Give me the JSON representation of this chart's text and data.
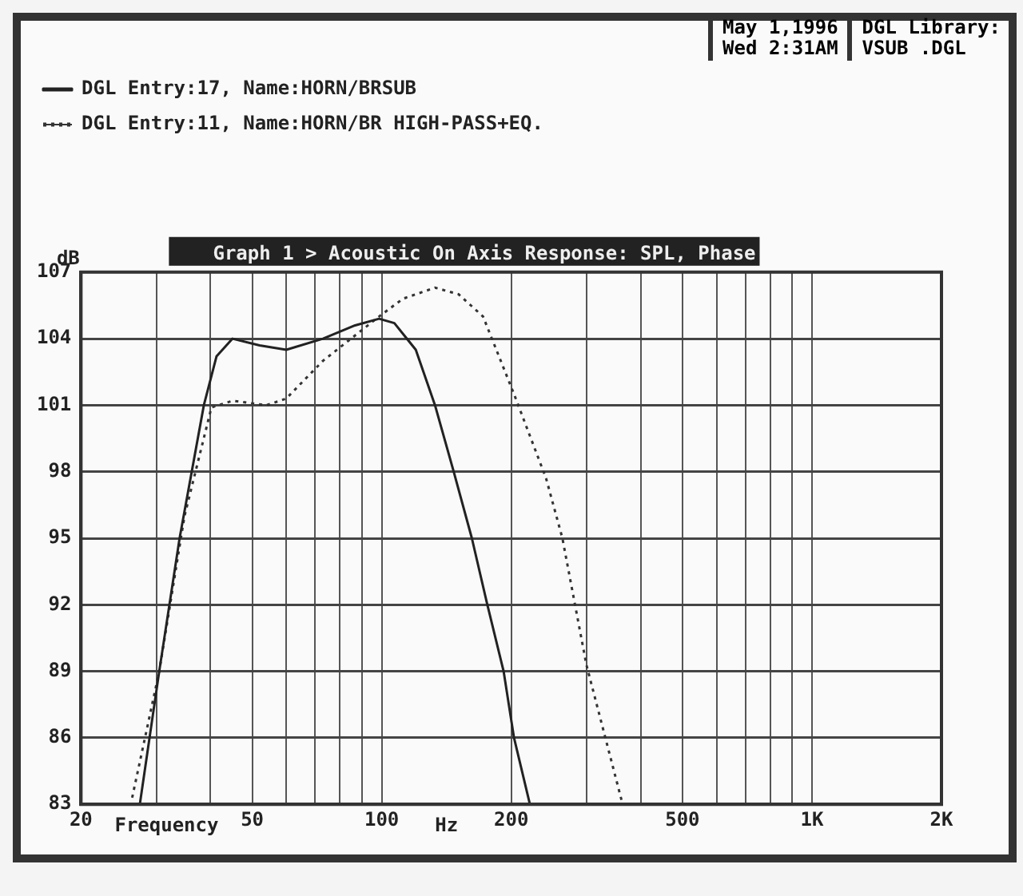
{
  "chart_data": {
    "type": "line",
    "title": "Graph 1 > Acoustic On Axis Response: SPL, Phase",
    "xlabel": "Frequency",
    "ylabel": "dB",
    "annotations": [
      "May  1,1996",
      "Wed  2:31AM",
      "DGL Library:",
      "VSUB    .DGL",
      "Hz"
    ],
    "log": "x",
    "grid": true,
    "legend": "top",
    "marker": "none",
    "xlim": [
      20,
      2000
    ],
    "ylim": [
      83,
      107
    ],
    "xticks": [
      20,
      {
        "value": 30,
        "label": null
      },
      {
        "value": 40,
        "label": null
      },
      50,
      {
        "value": 60,
        "label": null
      },
      {
        "value": 70,
        "label": null
      },
      {
        "value": 80,
        "label": null
      },
      {
        "value": 90,
        "label": null
      },
      100,
      200,
      {
        "value": 300,
        "label": null
      },
      {
        "value": 400,
        "label": null
      },
      500,
      {
        "value": 600,
        "label": null
      },
      {
        "value": 700,
        "label": null
      },
      {
        "value": 800,
        "label": null
      },
      {
        "value": 900,
        "label": null
      },
      {
        "value": 1000,
        "label": "1K"
      },
      {
        "value": 2000,
        "label": "2K"
      }
    ],
    "yticks": [
      83,
      86,
      89,
      92,
      95,
      98,
      101,
      104,
      107
    ],
    "series": [
      {
        "name": "DGL Entry:17, Name:HORN/BRSUB",
        "color": "#222222",
        "line_style": "solid",
        "x": [
          27.4,
          30.4,
          33.9,
          38.6,
          41.3,
          45,
          52,
          60,
          73,
          86.7,
          98.6,
          107,
          120,
          133,
          147,
          162,
          176,
          192,
          203,
          221
        ],
        "values": [
          83,
          89,
          95,
          101,
          103.2,
          104,
          103.7,
          103.5,
          104,
          104.6,
          104.9,
          104.7,
          103.5,
          101,
          98,
          95,
          92,
          89,
          86,
          83
        ]
      },
      {
        "name": "DGL Entry:11, Name:HORN/BR HIGH-PASS+EQ.",
        "color": "#333333",
        "line_style": "dotted",
        "x": [
          26.3,
          30.4,
          34.8,
          40.2,
          45,
          54,
          60,
          73,
          98.6,
          112,
          133,
          151,
          172,
          203,
          241,
          263,
          299,
          363
        ],
        "values": [
          83.3,
          89,
          96,
          100.9,
          101.2,
          101,
          101.3,
          103,
          105,
          105.8,
          106.3,
          106,
          105,
          101.5,
          97.7,
          95,
          89.3,
          83
        ]
      }
    ]
  }
}
